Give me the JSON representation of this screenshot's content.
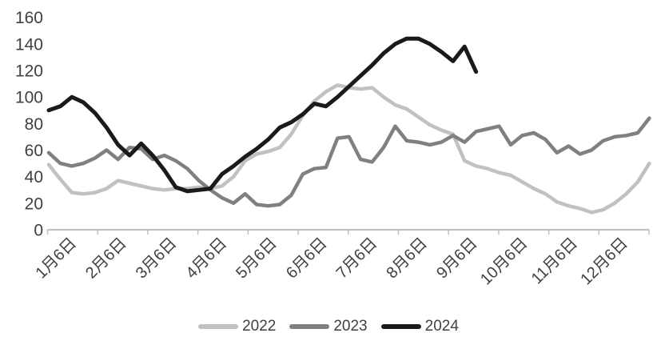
{
  "chart_data": {
    "type": "line",
    "title": "",
    "x_axis": {
      "labels": [
        "1月6日",
        "2月6日",
        "3月6日",
        "4月6日",
        "5月6日",
        "6月6日",
        "7月6日",
        "8月6日",
        "9月6日",
        "10月6日",
        "11月6日",
        "12月6日"
      ],
      "tick_count": 13
    },
    "y_axis": {
      "min": 0,
      "max": 160,
      "step": 20,
      "ticks": [
        0,
        20,
        40,
        60,
        80,
        100,
        120,
        140,
        160
      ]
    },
    "grid": false,
    "legend_position": "bottom",
    "series": [
      {
        "name": "2022",
        "color": "#c1c1c1",
        "stroke_width": 4.5,
        "values": [
          49,
          38,
          28,
          27,
          28,
          31,
          37,
          35,
          33,
          31,
          30,
          31,
          31,
          32,
          31,
          33,
          40,
          52,
          57,
          59,
          62,
          72,
          86,
          97,
          104,
          109,
          107,
          106,
          107,
          100,
          94,
          91,
          85,
          79,
          75,
          72,
          52,
          48,
          46,
          43,
          41,
          36,
          31,
          27,
          21,
          18,
          16,
          13,
          15,
          20,
          27,
          36,
          50
        ]
      },
      {
        "name": "2023",
        "color": "#808080",
        "stroke_width": 4.5,
        "values": [
          58,
          50,
          48,
          50,
          54,
          60,
          53,
          62,
          61,
          53,
          56,
          52,
          46,
          37,
          30,
          24,
          20,
          27,
          19,
          18,
          19,
          26,
          42,
          46,
          47,
          69,
          70,
          53,
          51,
          62,
          78,
          67,
          66,
          64,
          66,
          71,
          66,
          74,
          76,
          78,
          64,
          71,
          73,
          68,
          58,
          63,
          57,
          60,
          67,
          70,
          71,
          73,
          84
        ]
      },
      {
        "name": "2024",
        "color": "#1a1a1a",
        "stroke_width": 5,
        "values": [
          90,
          93,
          100,
          96,
          88,
          77,
          64,
          56,
          65,
          56,
          45,
          32,
          29,
          30,
          31,
          42,
          48,
          55,
          61,
          68,
          77,
          81,
          87,
          95,
          93,
          100,
          108,
          116,
          124,
          133,
          140,
          144,
          144,
          140,
          134,
          127,
          138,
          119
        ]
      }
    ]
  },
  "legend": {
    "items": [
      {
        "label": "2022",
        "color": "#c1c1c1"
      },
      {
        "label": "2023",
        "color": "#808080"
      },
      {
        "label": "2024",
        "color": "#1a1a1a"
      }
    ]
  },
  "colors": {
    "background": "#ffffff",
    "axis_line": "#bfbfbf",
    "tick_text": "#404040"
  }
}
